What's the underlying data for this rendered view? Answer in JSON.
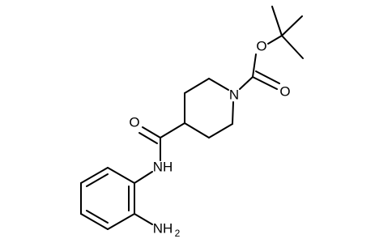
{
  "atoms": [
    {
      "label": "O"
    },
    {
      "label": "O"
    },
    {
      "label": "N"
    },
    {
      "label": "O"
    },
    {
      "label": "NH"
    },
    {
      "label": "NH",
      "subscript": "2"
    }
  ]
}
